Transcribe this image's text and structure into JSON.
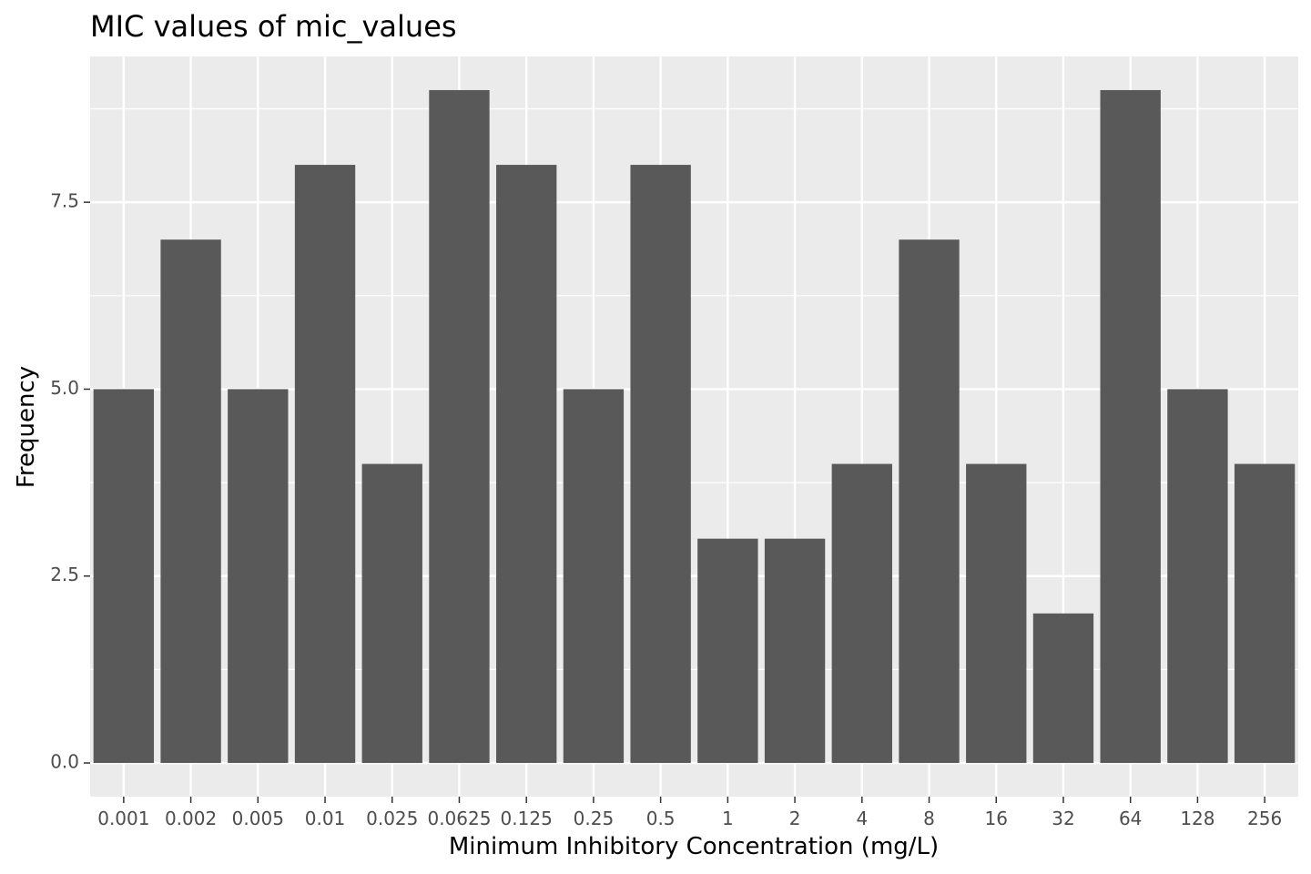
{
  "chart_data": {
    "type": "bar",
    "title": "MIC values of mic_values",
    "xlabel": "Minimum Inhibitory Concentration (mg/L)",
    "ylabel": "Frequency",
    "categories": [
      "0.001",
      "0.002",
      "0.005",
      "0.01",
      "0.025",
      "0.0625",
      "0.125",
      "0.25",
      "0.5",
      "1",
      "2",
      "4",
      "8",
      "16",
      "32",
      "64",
      "128",
      "256"
    ],
    "values": [
      5,
      7,
      5,
      8,
      4,
      9,
      8,
      5,
      8,
      3,
      3,
      4,
      7,
      4,
      2,
      9,
      5,
      4
    ],
    "ylim": [
      -0.45,
      9.45
    ],
    "yticks": [
      "0.0",
      "2.5",
      "5.0",
      "7.5"
    ],
    "ytick_values": [
      0,
      2.5,
      5,
      7.5
    ],
    "y_minor_tick_values": [
      1.25,
      3.75,
      6.25,
      8.75
    ],
    "grid": true,
    "colors": {
      "bar": "#595959",
      "panel_background": "#ebebeb",
      "grid": "#ffffff",
      "tick": "#333333"
    }
  }
}
